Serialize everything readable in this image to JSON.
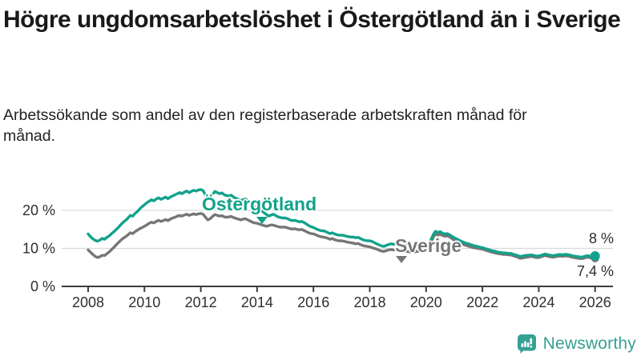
{
  "header": {
    "title": "Högre ungdomsarbetslöshet i Östergötland än i Sverige",
    "subtitle": "Arbetssökande som andel av den registerbaserade arbetskraften månad för månad."
  },
  "chart_data": {
    "type": "line",
    "title": "Högre ungdomsarbetslöshet i Östergötland än i Sverige",
    "subtitle": "Arbetssökande som andel av den registerbaserade arbetskraften månad för månad.",
    "x_unit": "year",
    "frequency": "monthly",
    "start": "2008-01",
    "end": "2026-01",
    "grid": "horizontal",
    "legend": "inline-labels",
    "ylim": [
      0,
      27
    ],
    "x_ticks": [
      2008,
      2010,
      2012,
      2014,
      2016,
      2018,
      2020,
      2022,
      2024,
      2026
    ],
    "y_ticks": [
      {
        "value": 20,
        "label": "20 %"
      },
      {
        "value": 10,
        "label": "10 %"
      },
      {
        "value": 0,
        "label": "0 %"
      }
    ],
    "series": [
      {
        "name": "Sverige",
        "color": "#767676",
        "final_value": 7.4,
        "values": [
          9.6,
          9.0,
          8.4,
          7.9,
          7.6,
          7.8,
          8.2,
          8.1,
          8.6,
          9.1,
          9.7,
          10.3,
          11.0,
          11.6,
          12.2,
          12.7,
          13.1,
          13.6,
          14.1,
          13.9,
          14.4,
          14.8,
          15.2,
          15.5,
          15.8,
          16.2,
          16.6,
          16.9,
          16.7,
          17.1,
          17.4,
          17.1,
          17.3,
          17.6,
          17.3,
          17.7,
          18.0,
          18.2,
          18.5,
          18.7,
          18.5,
          18.8,
          19.0,
          18.7,
          18.9,
          19.1,
          18.9,
          19.1,
          19.2,
          19.0,
          18.2,
          17.5,
          17.8,
          18.4,
          18.9,
          18.7,
          18.5,
          18.6,
          18.3,
          18.2,
          18.3,
          18.4,
          18.1,
          17.9,
          17.7,
          17.5,
          17.7,
          17.8,
          17.5,
          17.2,
          16.9,
          16.7,
          16.6,
          16.4,
          16.2,
          16.0,
          15.8,
          16.0,
          16.2,
          16.1,
          15.9,
          15.7,
          15.6,
          15.6,
          15.6,
          15.4,
          15.2,
          15.1,
          15.2,
          15.0,
          14.9,
          15.0,
          14.7,
          14.4,
          14.1,
          13.9,
          13.8,
          13.6,
          13.3,
          13.1,
          13.0,
          12.9,
          12.7,
          12.4,
          12.6,
          12.3,
          12.1,
          12.0,
          12.0,
          11.9,
          11.7,
          11.6,
          11.5,
          11.4,
          11.2,
          11.3,
          11.0,
          10.8,
          10.6,
          10.5,
          10.4,
          10.2,
          10.0,
          9.8,
          9.5,
          9.3,
          9.2,
          9.4,
          9.6,
          9.7,
          9.6,
          9.7,
          9.6,
          9.5,
          9.4,
          9.3,
          9.2,
          9.1,
          9.0,
          9.1,
          9.2,
          9.3,
          9.3,
          9.4,
          9.4,
          9.7,
          11.2,
          12.9,
          13.8,
          13.5,
          13.7,
          13.4,
          13.2,
          13.3,
          13.0,
          12.6,
          12.1,
          11.8,
          11.5,
          11.3,
          11.0,
          10.8,
          10.6,
          10.4,
          10.2,
          10.1,
          10.0,
          9.9,
          9.8,
          9.6,
          9.4,
          9.2,
          9.0,
          8.9,
          8.7,
          8.6,
          8.5,
          8.4,
          8.4,
          8.3,
          8.3,
          8.1,
          7.9,
          7.7,
          7.4,
          7.5,
          7.6,
          7.7,
          7.8,
          7.9,
          7.7,
          7.6,
          7.6,
          7.8,
          8.0,
          8.1,
          7.9,
          7.8,
          7.7,
          7.8,
          7.9,
          8.0,
          7.9,
          8.0,
          8.0,
          7.9,
          7.7,
          7.6,
          7.5,
          7.4,
          7.3,
          7.4,
          7.6,
          7.7,
          7.5,
          7.3,
          7.4
        ]
      },
      {
        "name": "Östergötland",
        "color": "#12a28b",
        "final_value": 8.0,
        "values": [
          13.8,
          13.1,
          12.5,
          12.1,
          11.9,
          12.2,
          12.6,
          12.4,
          12.9,
          13.3,
          13.9,
          14.4,
          15.0,
          15.6,
          16.3,
          16.9,
          17.4,
          18.0,
          18.7,
          18.5,
          19.2,
          19.7,
          20.4,
          21.0,
          21.5,
          22.0,
          22.4,
          22.8,
          22.5,
          23.0,
          23.3,
          22.9,
          23.2,
          23.5,
          23.1,
          23.5,
          23.8,
          24.1,
          24.4,
          24.7,
          24.4,
          24.8,
          25.1,
          24.7,
          25.0,
          25.3,
          25.1,
          25.4,
          25.5,
          25.2,
          24.0,
          23.0,
          23.4,
          24.2,
          25.0,
          24.7,
          24.4,
          24.6,
          24.1,
          23.9,
          23.8,
          24.0,
          23.5,
          23.2,
          22.9,
          22.5,
          22.8,
          23.0,
          22.6,
          22.2,
          21.5,
          21.0,
          20.5,
          20.2,
          19.8,
          19.4,
          18.9,
          18.5,
          18.8,
          19.0,
          18.6,
          18.3,
          18.1,
          18.0,
          18.0,
          17.8,
          17.5,
          17.3,
          17.4,
          17.2,
          17.0,
          17.1,
          16.8,
          16.4,
          16.0,
          15.7,
          15.5,
          15.2,
          14.9,
          14.7,
          14.6,
          14.5,
          14.2,
          13.9,
          14.1,
          13.8,
          13.6,
          13.5,
          13.5,
          13.4,
          13.2,
          13.1,
          13.0,
          13.0,
          12.8,
          12.9,
          12.6,
          12.3,
          12.1,
          12.0,
          12.0,
          11.8,
          11.5,
          11.2,
          10.9,
          10.7,
          10.5,
          10.8,
          11.0,
          11.2,
          11.1,
          11.2,
          11.2,
          11.0,
          10.9,
          10.8,
          10.7,
          10.6,
          10.5,
          10.6,
          10.7,
          10.8,
          10.7,
          10.8,
          10.8,
          11.0,
          12.2,
          13.6,
          14.5,
          14.2,
          14.4,
          14.0,
          13.8,
          13.9,
          13.6,
          13.2,
          12.8,
          12.5,
          12.2,
          11.9,
          11.6,
          11.4,
          11.2,
          11.0,
          10.8,
          10.6,
          10.5,
          10.3,
          10.2,
          10.0,
          9.8,
          9.6,
          9.4,
          9.3,
          9.1,
          9.0,
          8.9,
          8.8,
          8.8,
          8.7,
          8.7,
          8.5,
          8.3,
          8.1,
          7.9,
          8.0,
          8.1,
          8.2,
          8.2,
          8.3,
          8.1,
          8.0,
          8.0,
          8.2,
          8.4,
          8.5,
          8.3,
          8.2,
          8.1,
          8.2,
          8.3,
          8.4,
          8.3,
          8.4,
          8.4,
          8.3,
          8.1,
          8.0,
          7.9,
          7.8,
          7.7,
          7.8,
          8.0,
          8.1,
          7.9,
          7.8,
          8.0
        ]
      }
    ],
    "annotations": [
      {
        "text": "8 %",
        "value": 8.0,
        "series": "Östergötland",
        "position": "end-above"
      },
      {
        "text": "7,4 %",
        "value": 7.4,
        "series": "Sverige",
        "position": "end-below"
      }
    ]
  },
  "branding": {
    "logo_text": "Newsworthy",
    "logo_color": "#35a093"
  }
}
